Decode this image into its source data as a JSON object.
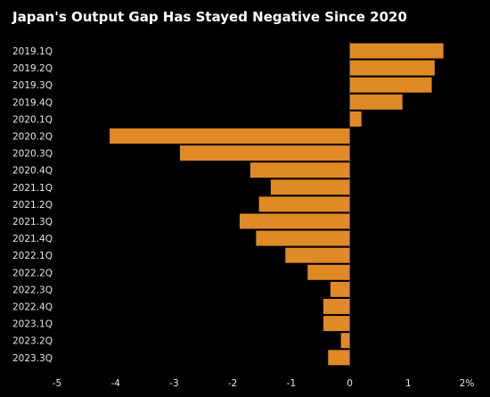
{
  "chart_data": {
    "type": "bar",
    "orientation": "horizontal",
    "title": "Japan's Output Gap Has Stayed Negative Since 2020",
    "categories": [
      "2019.1Q",
      "2019.2Q",
      "2019.3Q",
      "2019.4Q",
      "2020.1Q",
      "2020.2Q",
      "2020.3Q",
      "2020.4Q",
      "2021.1Q",
      "2021.2Q",
      "2021.3Q",
      "2021.4Q",
      "2022.1Q",
      "2022.2Q",
      "2022.3Q",
      "2022.4Q",
      "2023.1Q",
      "2023.2Q",
      "2023.3Q"
    ],
    "values": [
      1.6,
      1.45,
      1.4,
      0.9,
      0.2,
      -4.1,
      -2.9,
      -1.7,
      -1.35,
      -1.55,
      -1.88,
      -1.6,
      -1.1,
      -0.72,
      -0.33,
      -0.45,
      -0.45,
      -0.15,
      -0.37
    ],
    "xlim": [
      -5,
      2
    ],
    "xticks": [
      -5,
      -4,
      -3,
      -2,
      -1,
      0,
      1,
      2
    ],
    "xtick_labels": [
      "-5",
      "-4",
      "-3",
      "-2",
      "-1",
      "0",
      "1",
      "2%"
    ],
    "xlabel": "",
    "ylabel": "",
    "bar_color": "#e08a25",
    "background": "#000000",
    "text_color": "#e6e6e6",
    "grid": false,
    "legend": "none"
  }
}
